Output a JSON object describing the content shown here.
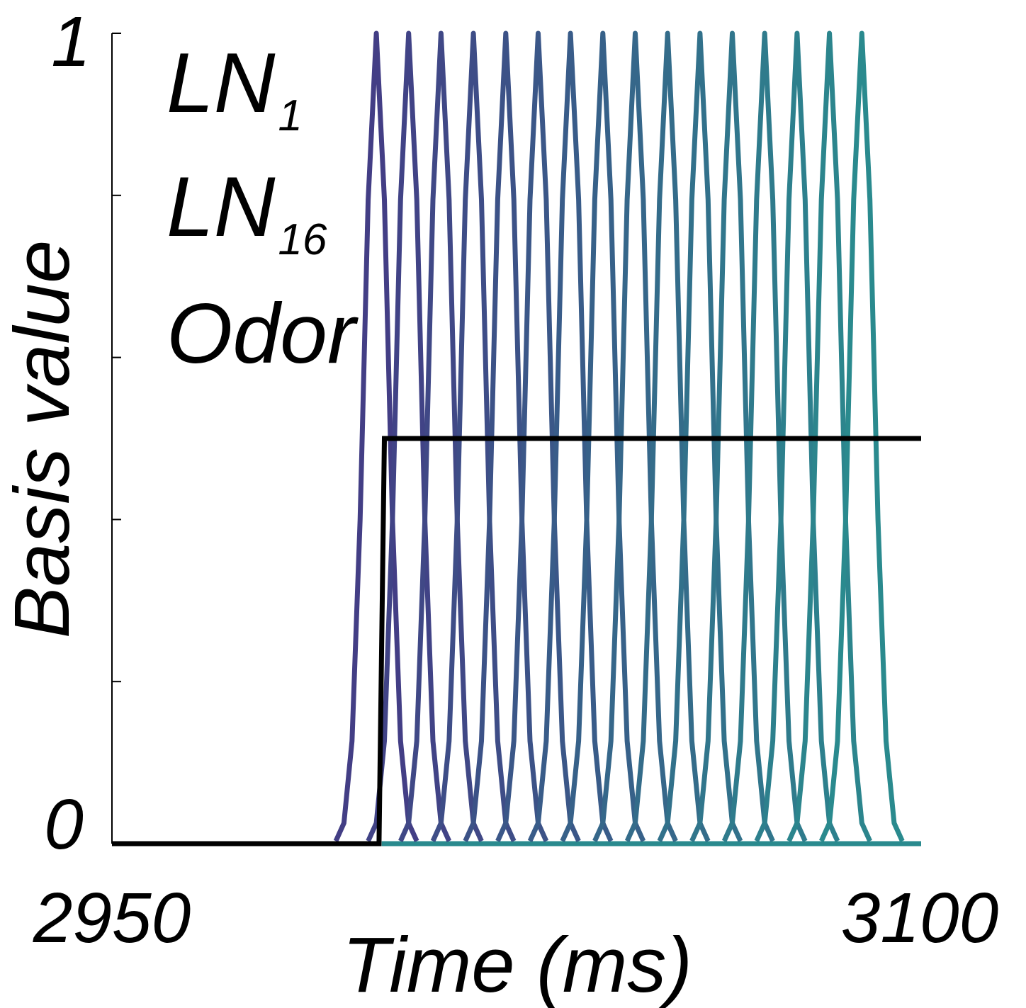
{
  "chart_data": {
    "type": "line",
    "title": "",
    "xlabel": "Time (ms)",
    "ylabel": "Basis value",
    "xlim": [
      2950,
      3100
    ],
    "ylim": [
      0,
      1
    ],
    "x_tick_labels": [
      "2950",
      "3100"
    ],
    "y_tick_labels": [
      "0",
      "1"
    ],
    "y_minor_ticks": [
      0,
      0.2,
      0.4,
      0.6,
      0.8,
      1.0
    ],
    "grid": false,
    "legend_position": "top-left",
    "legend": [
      {
        "base": "LN",
        "sub": "1",
        "color": "#433e85"
      },
      {
        "base": "LN",
        "sub": "16",
        "color": "#2a8a8e"
      },
      {
        "base": "Odor",
        "sub": "",
        "color": "#000000"
      }
    ],
    "basis": {
      "count": 16,
      "first_peak_ms": 2999,
      "period_ms": 6.0,
      "peak_value": 1.0,
      "sample_step_ms": 1.5,
      "color_start": "#433e85",
      "color_end": "#2a8a8e"
    },
    "odor": {
      "x": [
        2950,
        2999.5,
        3000.5,
        3100
      ],
      "y": [
        0,
        0,
        0.5,
        0.5
      ],
      "color": "#000000"
    }
  }
}
